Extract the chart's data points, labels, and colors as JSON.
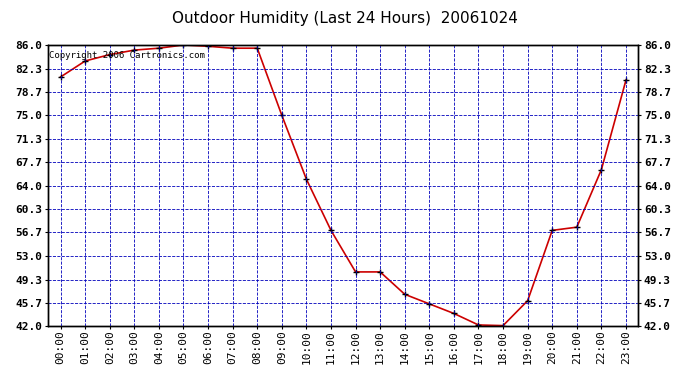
{
  "title": "Outdoor Humidity (Last 24 Hours)  20061024",
  "copyright_text": "Copyright 2006 Cartronics.com",
  "x_labels": [
    "00:00",
    "01:00",
    "02:00",
    "03:00",
    "04:00",
    "05:00",
    "06:00",
    "07:00",
    "08:00",
    "09:00",
    "10:00",
    "11:00",
    "12:00",
    "13:00",
    "14:00",
    "15:00",
    "16:00",
    "17:00",
    "18:00",
    "19:00",
    "20:00",
    "21:00",
    "22:00",
    "23:00"
  ],
  "y_ticks": [
    42.0,
    45.7,
    49.3,
    53.0,
    56.7,
    60.3,
    64.0,
    67.7,
    71.3,
    75.0,
    78.7,
    82.3,
    86.0
  ],
  "y_min": 42.0,
  "y_max": 86.0,
  "data_x": [
    0,
    1,
    2,
    3,
    4,
    5,
    6,
    7,
    8,
    9,
    10,
    11,
    12,
    13,
    14,
    15,
    16,
    17,
    18,
    19,
    20,
    21,
    22,
    23
  ],
  "data_y": [
    81.0,
    83.5,
    84.5,
    85.2,
    85.5,
    86.0,
    85.8,
    85.5,
    85.5,
    75.0,
    65.0,
    57.0,
    50.5,
    50.5,
    47.0,
    45.5,
    44.0,
    42.2,
    42.1,
    46.0,
    57.0,
    57.5,
    66.5,
    80.5
  ],
  "line_color": "#cc0000",
  "marker_color": "#000000",
  "bg_color": "#ffffff",
  "plot_bg_color": "#ffffff",
  "grid_color": "#0000bb",
  "border_color": "#000000",
  "title_fontsize": 11,
  "tick_fontsize": 8,
  "copyright_fontsize": 6.5
}
